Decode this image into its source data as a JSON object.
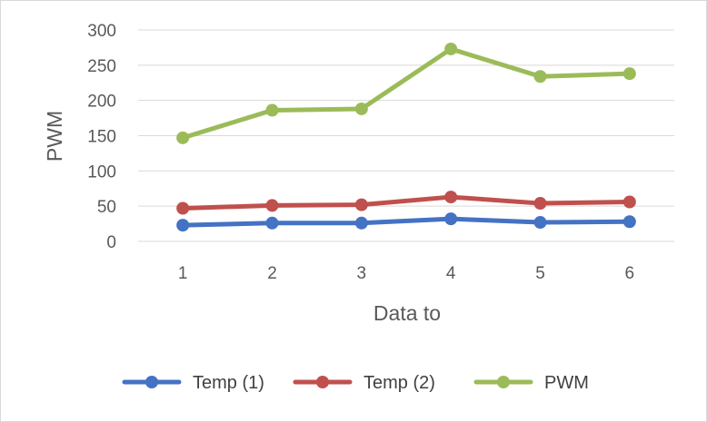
{
  "chart_data": {
    "type": "line",
    "title": "",
    "xlabel": "Data to",
    "ylabel": "PWM",
    "categories": [
      "1",
      "2",
      "3",
      "4",
      "5",
      "6"
    ],
    "y_ticks": [
      "0",
      "50",
      "100",
      "150",
      "200",
      "250",
      "300"
    ],
    "ylim": [
      0,
      300
    ],
    "grid": "horizontal",
    "legend_position": "bottom",
    "series": [
      {
        "name": "Temp (1)",
        "color": "#4472c4",
        "values": [
          23,
          26,
          26,
          32,
          27,
          28
        ]
      },
      {
        "name": "Temp (2)",
        "color": "#c0504d",
        "values": [
          47,
          51,
          52,
          63,
          54,
          56
        ]
      },
      {
        "name": "PWM",
        "color": "#9bbb59",
        "values": [
          147,
          186,
          188,
          273,
          234,
          238
        ]
      }
    ]
  }
}
